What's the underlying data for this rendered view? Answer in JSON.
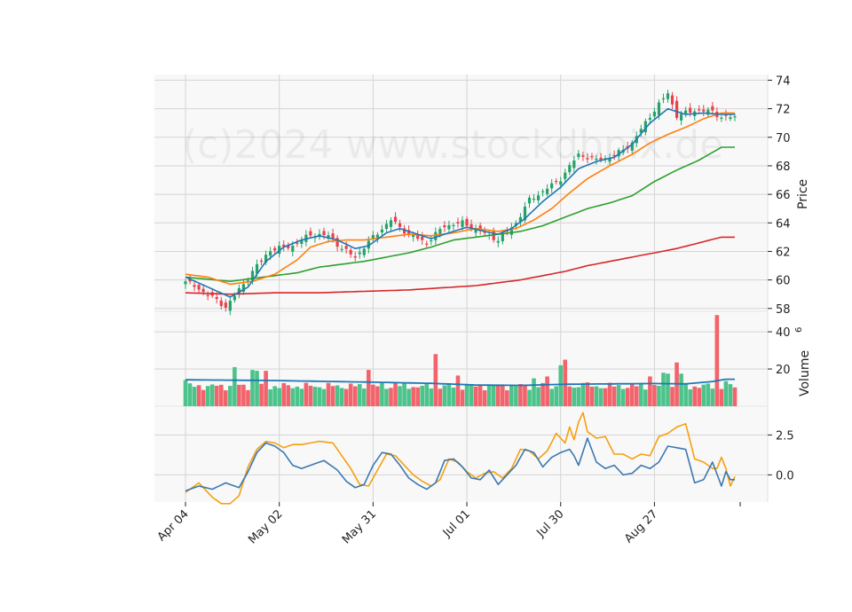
{
  "chart_data": {
    "type": "candlestick",
    "watermark": "(c)2024 www.stockdbpix.de",
    "x_tick_labels": [
      "Apr 04",
      "May 02",
      "May 31",
      "Jul 01",
      "Jul 30",
      "Aug 27"
    ],
    "colors": {
      "up": "#26a269",
      "down": "#e8414b",
      "ma_short": "#1f77b4",
      "ma_mid": "#ff7f0e",
      "ma_long": "#2ca02c",
      "ma_200": "#d62728",
      "volume_avg": "#1f77b4",
      "osc_a": "#3b78b0",
      "osc_b": "#f5a00f"
    },
    "price_panel": {
      "ylabel": "Price",
      "ylim": [
        57.8,
        74.4
      ],
      "yticks": [
        "58",
        "60",
        "62",
        "64",
        "66",
        "68",
        "70",
        "72",
        "74"
      ],
      "close_anchors": [
        [
          0,
          59.9
        ],
        [
          5,
          59.0
        ],
        [
          9,
          58.1
        ],
        [
          12,
          59.3
        ],
        [
          16,
          61.0
        ],
        [
          19,
          62.1
        ],
        [
          24,
          62.4
        ],
        [
          28,
          63.2
        ],
        [
          32,
          63.1
        ],
        [
          35,
          62.2
        ],
        [
          38,
          61.6
        ],
        [
          42,
          63.0
        ],
        [
          46,
          64.2
        ],
        [
          50,
          63.2
        ],
        [
          54,
          62.6
        ],
        [
          58,
          63.8
        ],
        [
          62,
          64.0
        ],
        [
          66,
          63.4
        ],
        [
          70,
          62.8
        ],
        [
          74,
          64.0
        ],
        [
          77,
          65.6
        ],
        [
          80,
          66.2
        ],
        [
          84,
          67.1
        ],
        [
          88,
          68.8
        ],
        [
          92,
          68.4
        ],
        [
          96,
          68.7
        ],
        [
          100,
          69.6
        ],
        [
          104,
          71.5
        ],
        [
          108,
          73.1
        ],
        [
          110,
          71.5
        ],
        [
          114,
          71.9
        ],
        [
          118,
          71.8
        ],
        [
          120,
          71.4
        ]
      ],
      "wave_amplitude": 0.55,
      "ma_short_anchors": [
        [
          0,
          60.2
        ],
        [
          5,
          59.5
        ],
        [
          10,
          58.8
        ],
        [
          14,
          59.5
        ],
        [
          18,
          61.3
        ],
        [
          22,
          62.3
        ],
        [
          26,
          62.8
        ],
        [
          30,
          63.1
        ],
        [
          34,
          62.8
        ],
        [
          38,
          62.2
        ],
        [
          41,
          62.4
        ],
        [
          45,
          63.3
        ],
        [
          48,
          63.6
        ],
        [
          52,
          63.2
        ],
        [
          55,
          62.9
        ],
        [
          59,
          63.3
        ],
        [
          63,
          63.7
        ],
        [
          67,
          63.4
        ],
        [
          70,
          63.2
        ],
        [
          73,
          63.6
        ],
        [
          76,
          64.3
        ],
        [
          80,
          65.5
        ],
        [
          84,
          66.5
        ],
        [
          88,
          67.8
        ],
        [
          92,
          68.3
        ],
        [
          96,
          68.6
        ],
        [
          100,
          69.5
        ],
        [
          104,
          71.0
        ],
        [
          108,
          72.0
        ],
        [
          112,
          71.6
        ],
        [
          116,
          71.7
        ],
        [
          120,
          71.6
        ]
      ],
      "ma_mid_anchors": [
        [
          0,
          60.4
        ],
        [
          5,
          60.2
        ],
        [
          10,
          59.7
        ],
        [
          15,
          59.9
        ],
        [
          20,
          60.4
        ],
        [
          25,
          61.4
        ],
        [
          28,
          62.3
        ],
        [
          32,
          62.7
        ],
        [
          36,
          62.8
        ],
        [
          40,
          62.8
        ],
        [
          45,
          63.0
        ],
        [
          50,
          63.2
        ],
        [
          55,
          63.1
        ],
        [
          60,
          63.3
        ],
        [
          65,
          63.6
        ],
        [
          70,
          63.4
        ],
        [
          74,
          63.6
        ],
        [
          78,
          64.2
        ],
        [
          82,
          65.0
        ],
        [
          86,
          66.1
        ],
        [
          90,
          67.1
        ],
        [
          95,
          68.0
        ],
        [
          100,
          68.8
        ],
        [
          104,
          69.6
        ],
        [
          108,
          70.2
        ],
        [
          112,
          70.7
        ],
        [
          116,
          71.3
        ],
        [
          120,
          71.7
        ]
      ],
      "ma_long_anchors": [
        [
          0,
          60.2
        ],
        [
          10,
          59.9
        ],
        [
          15,
          60.1
        ],
        [
          20,
          60.3
        ],
        [
          25,
          60.5
        ],
        [
          30,
          60.9
        ],
        [
          35,
          61.1
        ],
        [
          40,
          61.3
        ],
        [
          45,
          61.6
        ],
        [
          50,
          61.9
        ],
        [
          55,
          62.3
        ],
        [
          60,
          62.8
        ],
        [
          65,
          63.0
        ],
        [
          70,
          63.2
        ],
        [
          75,
          63.4
        ],
        [
          80,
          63.8
        ],
        [
          85,
          64.4
        ],
        [
          90,
          65.0
        ],
        [
          95,
          65.4
        ],
        [
          100,
          65.9
        ],
        [
          105,
          66.9
        ],
        [
          110,
          67.7
        ],
        [
          115,
          68.4
        ],
        [
          120,
          69.3
        ]
      ],
      "ma_200_anchors": [
        [
          0,
          59.1
        ],
        [
          10,
          59.0
        ],
        [
          20,
          59.1
        ],
        [
          30,
          59.1
        ],
        [
          40,
          59.2
        ],
        [
          50,
          59.3
        ],
        [
          55,
          59.4
        ],
        [
          60,
          59.5
        ],
        [
          65,
          59.6
        ],
        [
          70,
          59.8
        ],
        [
          75,
          60.0
        ],
        [
          80,
          60.3
        ],
        [
          85,
          60.6
        ],
        [
          90,
          61.0
        ],
        [
          95,
          61.3
        ],
        [
          100,
          61.6
        ],
        [
          105,
          61.9
        ],
        [
          110,
          62.2
        ],
        [
          115,
          62.6
        ],
        [
          120,
          63.0
        ]
      ]
    },
    "volume_panel": {
      "ylabel": "Volume",
      "ylabel_exponent": "6",
      "ylim": [
        0,
        51
      ],
      "yticks": [
        "20",
        "40"
      ],
      "base_level": 9.5,
      "spikes": [
        [
          0,
          14
        ],
        [
          11,
          21
        ],
        [
          15,
          19.5
        ],
        [
          16,
          19
        ],
        [
          18,
          19
        ],
        [
          41,
          19.5
        ],
        [
          47,
          13
        ],
        [
          54,
          12.5
        ],
        [
          56,
          28
        ],
        [
          61,
          16.5
        ],
        [
          78,
          15
        ],
        [
          81,
          16
        ],
        [
          84,
          22
        ],
        [
          85,
          25
        ],
        [
          89,
          12.5
        ],
        [
          104,
          16
        ],
        [
          107,
          18
        ],
        [
          108,
          17.5
        ],
        [
          110,
          23.5
        ],
        [
          111,
          17.5
        ],
        [
          119,
          49
        ],
        [
          121,
          13.5
        ]
      ],
      "avg_anchors": [
        [
          0,
          14.2
        ],
        [
          20,
          13.8
        ],
        [
          35,
          13.2
        ],
        [
          45,
          12.8
        ],
        [
          55,
          12.3
        ],
        [
          65,
          11.4
        ],
        [
          75,
          11.2
        ],
        [
          85,
          11.8
        ],
        [
          95,
          12.0
        ],
        [
          105,
          12.2
        ],
        [
          112,
          12.0
        ],
        [
          118,
          13.3
        ],
        [
          121,
          14.5
        ]
      ]
    },
    "oscillator_panel": {
      "ylim": [
        -1.7,
        4.3
      ],
      "yticks": [
        "0.0",
        "2.5"
      ],
      "series_a_anchors": [
        [
          0,
          -1.0
        ],
        [
          3,
          -0.7
        ],
        [
          6,
          -0.9
        ],
        [
          9,
          -0.5
        ],
        [
          12,
          -0.8
        ],
        [
          14,
          0.2
        ],
        [
          16,
          1.4
        ],
        [
          18,
          2.0
        ],
        [
          20,
          1.8
        ],
        [
          22,
          1.4
        ],
        [
          24,
          0.6
        ],
        [
          26,
          0.4
        ],
        [
          28,
          0.6
        ],
        [
          31,
          0.9
        ],
        [
          34,
          0.3
        ],
        [
          36,
          -0.4
        ],
        [
          38,
          -0.8
        ],
        [
          40,
          -0.6
        ],
        [
          42,
          0.6
        ],
        [
          44,
          1.4
        ],
        [
          46,
          1.3
        ],
        [
          48,
          0.6
        ],
        [
          50,
          -0.2
        ],
        [
          52,
          -0.6
        ],
        [
          54,
          -0.9
        ],
        [
          56,
          -0.5
        ],
        [
          58,
          0.9
        ],
        [
          60,
          1.0
        ],
        [
          62,
          0.5
        ],
        [
          64,
          -0.2
        ],
        [
          66,
          -0.3
        ],
        [
          68,
          0.3
        ],
        [
          70,
          -0.6
        ],
        [
          72,
          0.0
        ],
        [
          74,
          0.6
        ],
        [
          76,
          1.6
        ],
        [
          78,
          1.4
        ],
        [
          80,
          0.5
        ],
        [
          82,
          1.1
        ],
        [
          84,
          1.4
        ],
        [
          86,
          1.6
        ],
        [
          87,
          1.2
        ],
        [
          88,
          0.6
        ],
        [
          90,
          2.3
        ],
        [
          92,
          0.8
        ],
        [
          94,
          0.4
        ],
        [
          96,
          0.6
        ],
        [
          98,
          0.0
        ],
        [
          100,
          0.1
        ],
        [
          102,
          0.6
        ],
        [
          104,
          0.4
        ],
        [
          106,
          0.8
        ],
        [
          108,
          1.8
        ],
        [
          110,
          1.7
        ],
        [
          112,
          1.6
        ],
        [
          114,
          -0.5
        ],
        [
          116,
          -0.3
        ],
        [
          118,
          0.8
        ],
        [
          120,
          -0.7
        ],
        [
          121,
          0.2
        ],
        [
          122,
          -0.3
        ]
      ],
      "series_b_anchors": [
        [
          0,
          -1.1
        ],
        [
          3,
          -0.5
        ],
        [
          6,
          -1.4
        ],
        [
          8,
          -1.8
        ],
        [
          10,
          -1.8
        ],
        [
          12,
          -1.3
        ],
        [
          14,
          0.5
        ],
        [
          16,
          1.6
        ],
        [
          18,
          2.1
        ],
        [
          20,
          2.0
        ],
        [
          22,
          1.7
        ],
        [
          24,
          1.9
        ],
        [
          26,
          1.9
        ],
        [
          28,
          2.0
        ],
        [
          30,
          2.1
        ],
        [
          33,
          2.0
        ],
        [
          35,
          1.2
        ],
        [
          37,
          0.4
        ],
        [
          39,
          -0.6
        ],
        [
          41,
          -0.7
        ],
        [
          43,
          0.3
        ],
        [
          45,
          1.3
        ],
        [
          47,
          1.2
        ],
        [
          49,
          0.6
        ],
        [
          51,
          0.0
        ],
        [
          53,
          -0.4
        ],
        [
          55,
          -0.7
        ],
        [
          57,
          -0.3
        ],
        [
          59,
          1.0
        ],
        [
          61,
          0.8
        ],
        [
          63,
          0.2
        ],
        [
          65,
          -0.2
        ],
        [
          67,
          0.1
        ],
        [
          69,
          0.2
        ],
        [
          71,
          -0.2
        ],
        [
          73,
          0.4
        ],
        [
          75,
          1.6
        ],
        [
          77,
          1.5
        ],
        [
          79,
          1.0
        ],
        [
          81,
          1.5
        ],
        [
          83,
          2.6
        ],
        [
          85,
          2.0
        ],
        [
          86,
          3.0
        ],
        [
          87,
          2.2
        ],
        [
          88,
          3.3
        ],
        [
          89,
          3.9
        ],
        [
          90,
          2.7
        ],
        [
          92,
          2.3
        ],
        [
          94,
          2.4
        ],
        [
          96,
          1.3
        ],
        [
          98,
          1.3
        ],
        [
          100,
          1.0
        ],
        [
          102,
          1.3
        ],
        [
          104,
          1.2
        ],
        [
          106,
          2.4
        ],
        [
          108,
          2.6
        ],
        [
          110,
          3.0
        ],
        [
          112,
          3.2
        ],
        [
          114,
          1.0
        ],
        [
          116,
          0.8
        ],
        [
          118,
          0.4
        ],
        [
          119,
          0.4
        ],
        [
          120,
          1.1
        ],
        [
          121,
          0.4
        ],
        [
          122,
          -0.7
        ],
        [
          123,
          -0.1
        ]
      ]
    }
  }
}
